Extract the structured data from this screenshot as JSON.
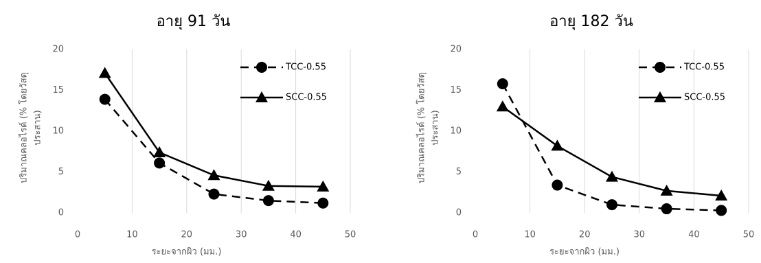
{
  "chart_data": [
    {
      "type": "line",
      "title": "อายุ 91 วัน",
      "xlabel": "ระยะจากผิว (มม.)",
      "ylabel": [
        "ปริมาณคลอไรด์ (% โดยวัสดุ",
        "ประสาน)"
      ],
      "x": [
        5,
        15,
        25,
        35,
        45
      ],
      "series": [
        {
          "name": "TCC-0.55",
          "color": "#000000",
          "marker": "circle",
          "dash": true,
          "values": [
            13.9,
            6.1,
            2.3,
            1.5,
            1.2
          ]
        },
        {
          "name": "SCC-0.55",
          "color": "#000000",
          "marker": "triangle",
          "dash": false,
          "values": [
            17.1,
            7.4,
            4.6,
            3.3,
            3.2
          ]
        }
      ],
      "xlim": [
        0,
        50
      ],
      "xticks": [
        0,
        10,
        20,
        30,
        40,
        50
      ],
      "ylim": [
        0,
        20
      ],
      "yticks": [
        0,
        5,
        10,
        15,
        20
      ],
      "grid": true,
      "legend": "top-right"
    },
    {
      "type": "line",
      "title": "อายุ 182 วัน",
      "xlabel": "ระยะจากผิว (มม.)",
      "ylabel": [
        "ปริมาณคลอไรด์ (% โดยวัสดุ",
        "ประสาน)"
      ],
      "x": [
        5,
        15,
        25,
        35,
        45
      ],
      "series": [
        {
          "name": "TCC-0.55",
          "color": "#000000",
          "marker": "circle",
          "dash": true,
          "values": [
            15.8,
            3.4,
            1.0,
            0.5,
            0.3
          ]
        },
        {
          "name": "SCC-0.55",
          "color": "#000000",
          "marker": "triangle",
          "dash": false,
          "values": [
            13.0,
            8.2,
            4.4,
            2.7,
            2.1
          ]
        }
      ],
      "xlim": [
        0,
        50
      ],
      "xticks": [
        0,
        10,
        20,
        30,
        40,
        50
      ],
      "ylim": [
        0,
        20
      ],
      "yticks": [
        0,
        5,
        10,
        15,
        20
      ],
      "grid": true,
      "legend": "top-right"
    }
  ]
}
